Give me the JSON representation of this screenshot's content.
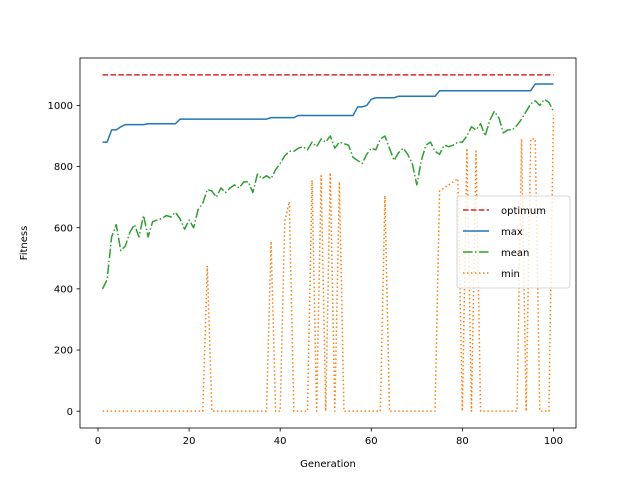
{
  "chart_data": {
    "type": "line",
    "xlabel": "Generation",
    "ylabel": "Fitness",
    "xlim": [
      -3.95,
      104.95
    ],
    "ylim": [
      -55,
      1155
    ],
    "xticks": [
      0,
      20,
      40,
      60,
      80,
      100
    ],
    "yticks": [
      0,
      200,
      400,
      600,
      800,
      1000
    ],
    "grid": false,
    "legend_position": "center-right",
    "series": [
      {
        "name": "optimum",
        "color": "#d62728",
        "style": "dashed",
        "x": [
          1,
          100
        ],
        "y": [
          1100,
          1100
        ]
      },
      {
        "name": "max",
        "color": "#1f77b4",
        "style": "solid",
        "x": [
          1,
          2,
          3,
          4,
          5,
          6,
          10,
          11,
          17,
          18,
          37,
          38,
          43,
          44,
          56,
          57,
          58,
          59,
          60,
          61,
          65,
          66,
          74,
          75,
          95,
          96,
          100
        ],
        "y": [
          880,
          880,
          920,
          920,
          930,
          937,
          937,
          940,
          940,
          955,
          955,
          960,
          960,
          967,
          967,
          995,
          995,
          1000,
          1020,
          1025,
          1025,
          1030,
          1030,
          1048,
          1048,
          1070,
          1070
        ]
      },
      {
        "name": "mean",
        "color": "#2ca02c",
        "style": "dashdot",
        "x": [
          1,
          2,
          3,
          4,
          5,
          6,
          7,
          8,
          9,
          10,
          11,
          12,
          13,
          14,
          15,
          16,
          17,
          18,
          19,
          20,
          21,
          22,
          23,
          24,
          25,
          26,
          27,
          28,
          29,
          30,
          31,
          32,
          33,
          34,
          35,
          36,
          37,
          38,
          39,
          40,
          41,
          42,
          43,
          44,
          45,
          46,
          47,
          48,
          49,
          50,
          51,
          52,
          53,
          54,
          55,
          56,
          57,
          58,
          59,
          60,
          61,
          62,
          63,
          64,
          65,
          66,
          67,
          68,
          69,
          70,
          71,
          72,
          73,
          74,
          75,
          76,
          77,
          78,
          79,
          80,
          81,
          82,
          83,
          84,
          85,
          86,
          87,
          88,
          89,
          90,
          91,
          92,
          93,
          94,
          95,
          96,
          97,
          98,
          99,
          100
        ],
        "y": [
          400,
          430,
          570,
          610,
          525,
          540,
          585,
          610,
          570,
          640,
          570,
          620,
          625,
          630,
          640,
          635,
          650,
          630,
          595,
          625,
          600,
          660,
          680,
          725,
          720,
          700,
          730,
          715,
          730,
          740,
          730,
          750,
          750,
          715,
          775,
          760,
          770,
          760,
          790,
          810,
          835,
          850,
          850,
          860,
          865,
          855,
          880,
          865,
          890,
          880,
          900,
          860,
          880,
          875,
          870,
          830,
          820,
          810,
          840,
          860,
          855,
          890,
          900,
          860,
          820,
          845,
          860,
          840,
          810,
          740,
          820,
          870,
          880,
          850,
          840,
          870,
          865,
          870,
          880,
          880,
          900,
          930,
          920,
          940,
          900,
          950,
          980,
          960,
          910,
          920,
          920,
          935,
          955,
          980,
          1005,
          1015,
          1000,
          1020,
          1010,
          980
        ]
      },
      {
        "name": "min",
        "color": "#ff7f0e",
        "style": "dotted",
        "x": [
          1,
          23,
          24,
          25,
          37,
          38,
          39,
          40,
          41,
          42,
          43,
          44,
          45,
          46,
          47,
          48,
          49,
          50,
          51,
          52,
          53,
          54,
          55,
          62,
          63,
          64,
          74,
          75,
          76,
          77,
          78,
          79,
          80,
          81,
          82,
          83,
          84,
          92,
          93,
          94,
          95,
          96,
          97,
          98,
          99,
          100
        ],
        "y": [
          0,
          0,
          475,
          0,
          0,
          555,
          0,
          0,
          620,
          685,
          0,
          0,
          0,
          0,
          755,
          0,
          770,
          0,
          780,
          0,
          750,
          0,
          0,
          0,
          705,
          0,
          0,
          720,
          730,
          740,
          750,
          760,
          0,
          860,
          0,
          850,
          0,
          0,
          890,
          0,
          890,
          890,
          0,
          0,
          0,
          970
        ]
      }
    ]
  }
}
